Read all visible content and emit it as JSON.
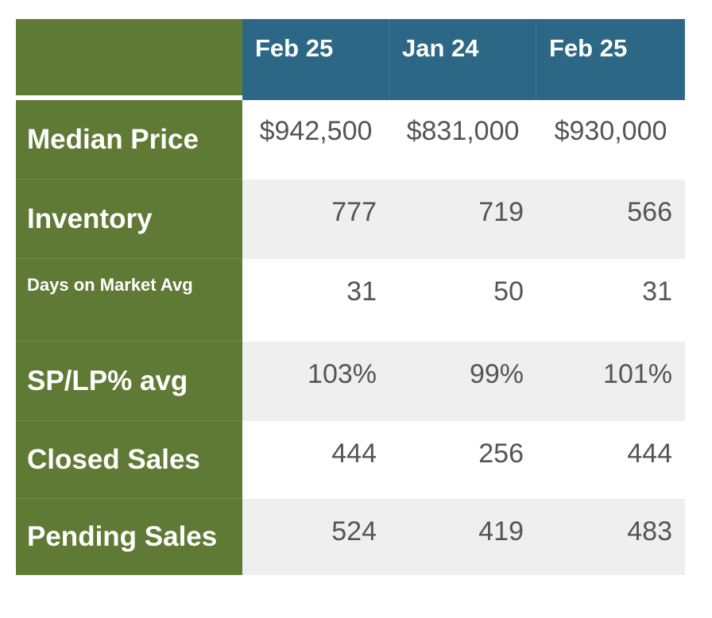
{
  "chart_data": {
    "type": "table",
    "columns": [
      "Feb 25",
      "Jan 24",
      "Feb 25"
    ],
    "rows": [
      {
        "label": "Median Price",
        "values": [
          "$942,500",
          "$831,000",
          "$930,000"
        ]
      },
      {
        "label": "Inventory",
        "values": [
          "777",
          "719",
          "566"
        ]
      },
      {
        "label": "Days on Market Avg",
        "values": [
          "31",
          "50",
          "31"
        ]
      },
      {
        "label": "SP/LP% avg",
        "values": [
          "103%",
          "99%",
          "101%"
        ]
      },
      {
        "label": "Closed Sales",
        "values": [
          "444",
          "256",
          "444"
        ]
      },
      {
        "label": "Pending Sales",
        "values": [
          "524",
          "419",
          "483"
        ]
      }
    ]
  },
  "colors": {
    "header_blue": "#2c6785",
    "label_green": "#5e7a34",
    "stripe_gray": "#efefef",
    "value_text": "#555555"
  }
}
